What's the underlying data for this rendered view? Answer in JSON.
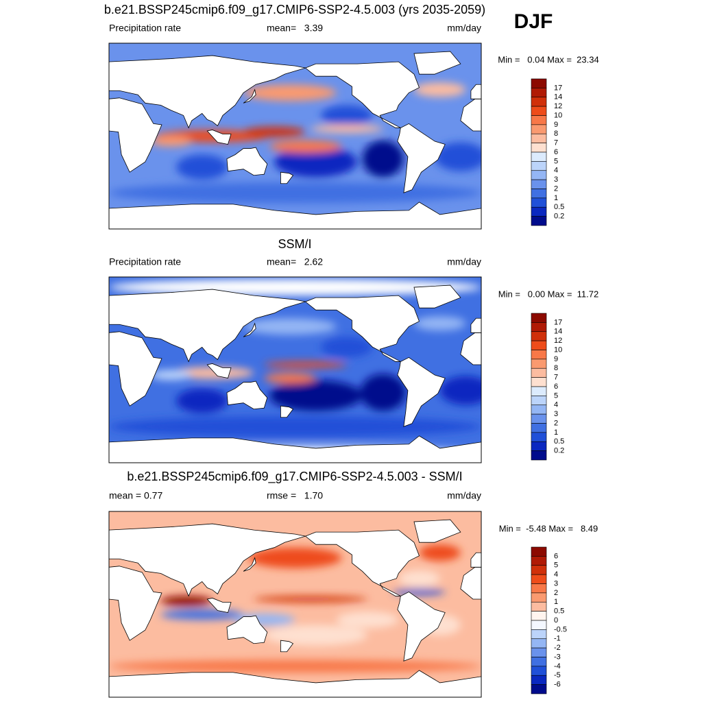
{
  "season": "DJF",
  "panels": [
    {
      "title": "b.e21.BSSP245cmip6.f09_g17.CMIP6-SSP2-4.5.003 (yrs 2035-2059)",
      "left_label": "Precipitation rate",
      "center_label": "mean=   3.39",
      "right_label": "mm/day",
      "minmax": "Min =   0.04 Max =  23.34",
      "colorbar": {
        "labels": [
          "17",
          "14",
          "12",
          "10",
          "9",
          "8",
          "7",
          "6",
          "5",
          "4",
          "3",
          "2",
          "1",
          "0.5",
          "0.2"
        ],
        "colors": [
          "#8c0a00",
          "#b01a05",
          "#d0300a",
          "#ee4c1a",
          "#f87848",
          "#fa9a70",
          "#fcbca0",
          "#fee0d0",
          "#dcebfd",
          "#bcd4fa",
          "#94b6f4",
          "#6a92ec",
          "#4070e2",
          "#2050d8",
          "#0a28c0",
          "#000c8c"
        ]
      }
    },
    {
      "title": "SSM/I",
      "left_label": "Precipitation rate",
      "center_label": "mean=   2.62",
      "right_label": "mm/day",
      "minmax": "Min =   0.00 Max =  11.72",
      "colorbar": {
        "labels": [
          "17",
          "14",
          "12",
          "10",
          "9",
          "8",
          "7",
          "6",
          "5",
          "4",
          "3",
          "2",
          "1",
          "0.5",
          "0.2"
        ],
        "colors": [
          "#8c0a00",
          "#b01a05",
          "#d0300a",
          "#ee4c1a",
          "#f87848",
          "#fa9a70",
          "#fcbca0",
          "#fee0d0",
          "#dcebfd",
          "#bcd4fa",
          "#94b6f4",
          "#6a92ec",
          "#4070e2",
          "#2050d8",
          "#0a28c0",
          "#000c8c"
        ]
      }
    },
    {
      "title": "b.e21.BSSP245cmip6.f09_g17.CMIP6-SSP2-4.5.003 - SSM/I",
      "left_label": "mean =   0.77",
      "center_label": "rmse =   1.70",
      "right_label": "mm/day",
      "minmax": "Min =  -5.48 Max =   8.49",
      "colorbar": {
        "labels": [
          "6",
          "5",
          "4",
          "3",
          "2",
          "1",
          "0.5",
          "0",
          "-0.5",
          "-1",
          "-2",
          "-3",
          "-4",
          "-5",
          "-6"
        ],
        "colors": [
          "#8c0a00",
          "#b01a05",
          "#d0300a",
          "#ee4c1a",
          "#f87848",
          "#fa9a70",
          "#fcbca0",
          "#fff4ee",
          "#f4f8ff",
          "#bcd4fa",
          "#94b6f4",
          "#6a92ec",
          "#4070e2",
          "#2050d8",
          "#0a28c0",
          "#000c8c"
        ]
      }
    }
  ]
}
